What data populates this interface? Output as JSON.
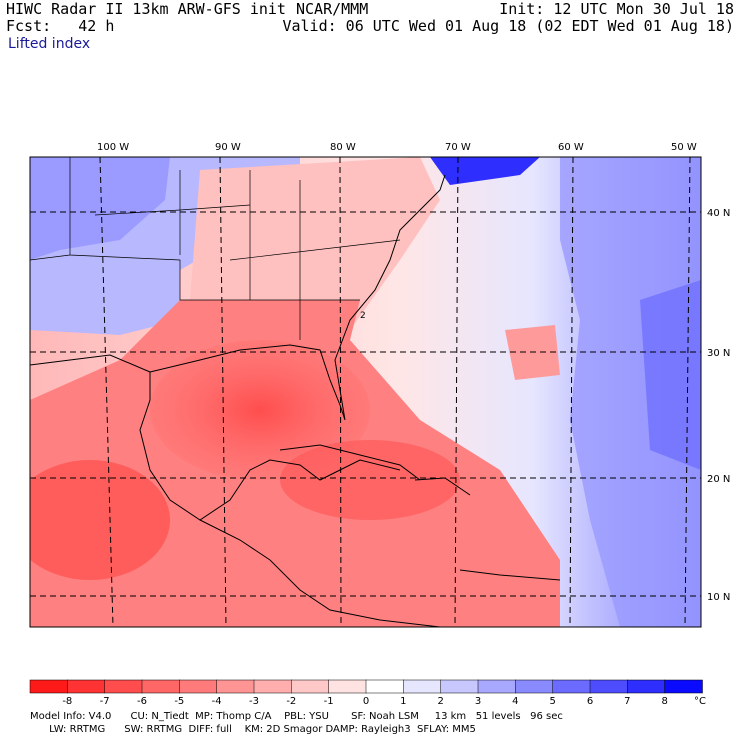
{
  "header": {
    "title": "HIWC Radar II 13km ARW-GFS init",
    "source": "NCAR/MMM",
    "forecast": "Fcst:   42 h",
    "init": "Init: 12 UTC Mon 30 Jul 18",
    "valid": "Valid: 06 UTC Wed 01 Aug 18 (02 EDT Wed 01 Aug 18)",
    "field": "Lifted index"
  },
  "map": {
    "longitude_labels": [
      "100 W",
      "90 W",
      "80 W",
      "70 W",
      "60 W",
      "50 W"
    ],
    "latitude_labels": [
      "40 N",
      "30 N",
      "20 N",
      "10 N"
    ],
    "contour_label": "2"
  },
  "colorbar": {
    "unit": "°C",
    "tick_labels": [
      "-8",
      "-7",
      "-6",
      "-5",
      "-4",
      "-3",
      "-2",
      "-1",
      "0",
      "1",
      "2",
      "3",
      "4",
      "5",
      "6",
      "7",
      "8"
    ],
    "colors": [
      "#ff1a1a",
      "#ff3333",
      "#ff4d4d",
      "#ff6666",
      "#ff7a7a",
      "#ff9494",
      "#ffadad",
      "#ffc8c8",
      "#ffe3e3",
      "#ffffff",
      "#e6e6ff",
      "#c8c8ff",
      "#a8a8ff",
      "#8a8aff",
      "#6b6bff",
      "#4d4dff",
      "#2e2eff",
      "#0a0aff"
    ]
  },
  "footer": {
    "line1": "Model Info: V4.0      CU: N_Tiedt  MP: Thomp C/A    PBL: YSU       SF: Noah LSM     13 km   51 levels   96 sec",
    "line2": "      LW: RRTMG      SW: RRTMG  DIFF: full    KM: 2D Smagor DAMP: Rayleigh3  SFLAY: MM5"
  }
}
